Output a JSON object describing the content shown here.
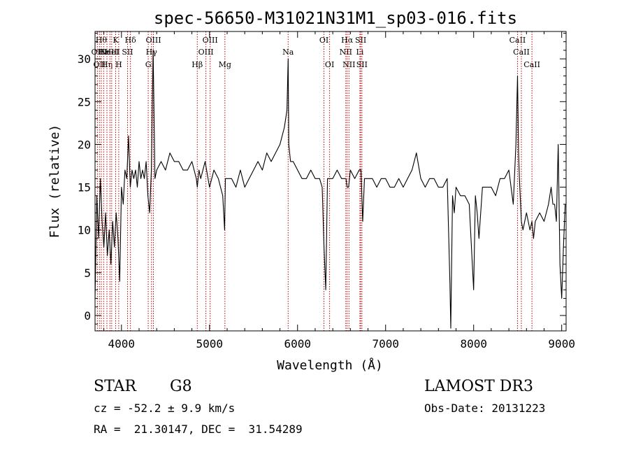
{
  "chart_data": {
    "type": "line",
    "title": "spec-56650-M31021N31M1_sp03-016.fits",
    "xlabel": "Wavelength (Å)",
    "ylabel": "Flux (relative)",
    "xlim": [
      3700,
      9050
    ],
    "ylim": [
      -1.8,
      33.2
    ],
    "x_ticks": [
      4000,
      5000,
      6000,
      7000,
      8000,
      9000
    ],
    "y_ticks": [
      0,
      5,
      10,
      15,
      20,
      25,
      30
    ],
    "grid": false,
    "series": [
      {
        "name": "flux",
        "x": [
          3700,
          3720,
          3740,
          3760,
          3780,
          3800,
          3820,
          3840,
          3860,
          3880,
          3900,
          3920,
          3940,
          3960,
          3980,
          4000,
          4020,
          4040,
          4060,
          4080,
          4100,
          4120,
          4140,
          4160,
          4180,
          4200,
          4220,
          4240,
          4260,
          4280,
          4300,
          4320,
          4340,
          4360,
          4380,
          4400,
          4450,
          4500,
          4550,
          4600,
          4650,
          4700,
          4750,
          4800,
          4850,
          4861,
          4880,
          4900,
          4950,
          5000,
          5050,
          5100,
          5150,
          5172,
          5180,
          5200,
          5250,
          5300,
          5350,
          5400,
          5450,
          5500,
          5550,
          5600,
          5650,
          5700,
          5750,
          5800,
          5850,
          5880,
          5893,
          5900,
          5920,
          5950,
          6000,
          6050,
          6100,
          6150,
          6200,
          6250,
          6280,
          6300,
          6320,
          6340,
          6360,
          6400,
          6450,
          6500,
          6550,
          6563,
          6580,
          6600,
          6650,
          6700,
          6720,
          6740,
          6760,
          6800,
          6850,
          6900,
          6950,
          7000,
          7050,
          7100,
          7150,
          7200,
          7250,
          7300,
          7350,
          7400,
          7450,
          7500,
          7550,
          7600,
          7650,
          7700,
          7730,
          7740,
          7760,
          7780,
          7800,
          7850,
          7900,
          7950,
          8000,
          8020,
          8040,
          8060,
          8100,
          8150,
          8200,
          8250,
          8300,
          8350,
          8400,
          8450,
          8480,
          8498,
          8510,
          8520,
          8542,
          8560,
          8580,
          8600,
          8640,
          8662,
          8680,
          8700,
          8750,
          8800,
          8850,
          8880,
          8900,
          8920,
          8940,
          8960,
          8980,
          9000,
          9020,
          9040
        ],
        "y": [
          2,
          14,
          9,
          16,
          11,
          8,
          12,
          7,
          10,
          6,
          11,
          8,
          12,
          9,
          4,
          15,
          13,
          17,
          16,
          21,
          15,
          17,
          16,
          17,
          15,
          18,
          16,
          17,
          16,
          18,
          14,
          12,
          17,
          31,
          16,
          17,
          18,
          17,
          19,
          18,
          18,
          17,
          17,
          18,
          16,
          15,
          17,
          16,
          18,
          15,
          17,
          16,
          14,
          10,
          16,
          16,
          16,
          15,
          17,
          15,
          16,
          17,
          18,
          17,
          19,
          18,
          19,
          20,
          22,
          24,
          30,
          20,
          18,
          18,
          17,
          16,
          16,
          17,
          16,
          16,
          15,
          8,
          3,
          16,
          16,
          16,
          17,
          16,
          16,
          15,
          15,
          17,
          16,
          17,
          17,
          11,
          16,
          16,
          16,
          15,
          16,
          16,
          15,
          15,
          16,
          15,
          16,
          17,
          19,
          16,
          15,
          16,
          16,
          15,
          15,
          16,
          4,
          -1.5,
          14,
          12,
          15,
          14,
          14,
          13,
          3,
          14,
          12,
          9,
          15,
          15,
          15,
          14,
          16,
          16,
          17,
          13,
          20,
          28,
          19,
          16,
          11,
          10,
          11,
          12,
          10,
          11,
          9,
          11,
          12,
          11,
          13,
          15,
          13,
          13,
          11,
          20,
          6,
          2,
          8,
          13
        ]
      }
    ],
    "lines": [
      {
        "wavelength": 3727,
        "label": "OII",
        "row": 2
      },
      {
        "wavelength": 3750,
        "label": "OII",
        "row": 3
      },
      {
        "wavelength": 3771,
        "label": "Hθ",
        "row": 1
      },
      {
        "wavelength": 3798,
        "label": "Hε",
        "row": 2
      },
      {
        "wavelength": 3835,
        "label": "Hη",
        "row": 3
      },
      {
        "wavelength": 3869,
        "label": "NeIII",
        "row": 2
      },
      {
        "wavelength": 3889,
        "label": "HeI",
        "row": 2
      },
      {
        "wavelength": 3934,
        "label": "K",
        "row": 1
      },
      {
        "wavelength": 3969,
        "label": "H",
        "row": 3
      },
      {
        "wavelength": 4069,
        "label": "SII",
        "row": 2
      },
      {
        "wavelength": 4102,
        "label": "Hδ",
        "row": 1
      },
      {
        "wavelength": 4304,
        "label": "G",
        "row": 3
      },
      {
        "wavelength": 4341,
        "label": "Hγ",
        "row": 2
      },
      {
        "wavelength": 4363,
        "label": "OIII",
        "row": 1
      },
      {
        "wavelength": 4861,
        "label": "Hβ",
        "row": 3
      },
      {
        "wavelength": 4959,
        "label": "OIII",
        "row": 2
      },
      {
        "wavelength": 5007,
        "label": "OIII",
        "row": 1
      },
      {
        "wavelength": 5175,
        "label": "Mg",
        "row": 3
      },
      {
        "wavelength": 5893,
        "label": "Na",
        "row": 2
      },
      {
        "wavelength": 6300,
        "label": "OI",
        "row": 1
      },
      {
        "wavelength": 6364,
        "label": "OI",
        "row": 3
      },
      {
        "wavelength": 6548,
        "label": "NII",
        "row": 2
      },
      {
        "wavelength": 6563,
        "label": "Hα",
        "row": 1
      },
      {
        "wavelength": 6584,
        "label": "NII",
        "row": 3
      },
      {
        "wavelength": 6708,
        "label": "Li",
        "row": 2
      },
      {
        "wavelength": 6717,
        "label": "SII",
        "row": 1
      },
      {
        "wavelength": 6731,
        "label": "SII",
        "row": 3
      },
      {
        "wavelength": 8498,
        "label": "CaII",
        "row": 1
      },
      {
        "wavelength": 8542,
        "label": "CaII",
        "row": 2
      },
      {
        "wavelength": 8662,
        "label": "CaII",
        "row": 3
      }
    ]
  },
  "info": {
    "class": "STAR",
    "subclass": "G8",
    "survey": "LAMOST DR3",
    "cz": "cz = -52.2 ± 9.9 km/s",
    "obs_date": "Obs-Date: 20131223",
    "coords": "RA =  21.30147, DEC =  31.54289"
  }
}
